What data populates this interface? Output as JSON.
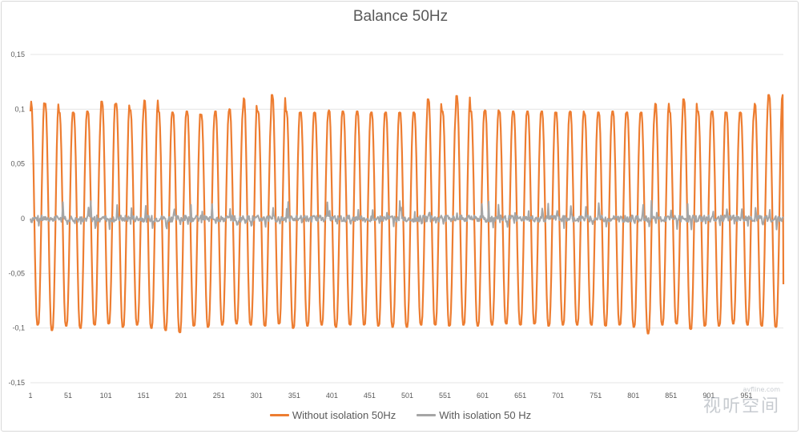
{
  "chart_data": {
    "type": "line",
    "title": "Balance 50Hz",
    "xlabel": "",
    "ylabel": "",
    "ylim": [
      -0.15,
      0.15
    ],
    "y_ticks": [
      "0,15",
      "0,1",
      "0,05",
      "0",
      "-0,05",
      "-0,1",
      "-0,15"
    ],
    "y_tick_values": [
      0.15,
      0.1,
      0.05,
      0,
      -0.05,
      -0.1,
      -0.15
    ],
    "x_range": [
      1,
      1000
    ],
    "x_ticks": [
      "1",
      "51",
      "101",
      "151",
      "201",
      "251",
      "301",
      "351",
      "401",
      "451",
      "501",
      "551",
      "601",
      "651",
      "701",
      "751",
      "801",
      "851",
      "901",
      "951"
    ],
    "x_tick_values": [
      1,
      51,
      101,
      151,
      201,
      251,
      301,
      351,
      401,
      451,
      501,
      551,
      601,
      651,
      701,
      751,
      801,
      851,
      901,
      951
    ],
    "grid": "horizontal",
    "legend_position": "bottom",
    "series": [
      {
        "name": "Without isolation 50Hz",
        "color": "#ed7d31",
        "description": "approximately periodic oscillation, ~53 cycles over the 1000 samples, peaks ≈ 0.093–0.113, troughs ≈ -0.095 to -0.105",
        "cycles": 53,
        "start_value": 0.098,
        "end_value": -0.06,
        "peak_values": [
          0.107,
          0.105,
          0.097,
          0.097,
          0.098,
          0.107,
          0.105,
          0.099,
          0.108,
          0.098,
          0.097,
          0.098,
          0.095,
          0.098,
          0.1,
          0.11,
          0.098,
          0.113,
          0.098,
          0.097,
          0.097,
          0.099,
          0.098,
          0.098,
          0.097,
          0.097,
          0.097,
          0.097,
          0.109,
          0.098,
          0.112,
          0.098,
          0.099,
          0.098,
          0.098,
          0.098,
          0.098,
          0.097,
          0.098,
          0.096,
          0.097,
          0.098,
          0.097,
          0.097,
          0.105,
          0.098,
          0.109,
          0.098,
          0.098,
          0.097,
          0.097,
          0.105,
          0.113
        ],
        "trough_values": [
          -0.097,
          -0.102,
          -0.098,
          -0.1,
          -0.097,
          -0.096,
          -0.099,
          -0.097,
          -0.1,
          -0.102,
          -0.104,
          -0.098,
          -0.099,
          -0.097,
          -0.096,
          -0.097,
          -0.098,
          -0.096,
          -0.1,
          -0.098,
          -0.097,
          -0.099,
          -0.097,
          -0.097,
          -0.098,
          -0.099,
          -0.099,
          -0.097,
          -0.097,
          -0.098,
          -0.097,
          -0.098,
          -0.097,
          -0.096,
          -0.097,
          -0.096,
          -0.098,
          -0.097,
          -0.097,
          -0.097,
          -0.098,
          -0.097,
          -0.099,
          -0.105,
          -0.097,
          -0.096,
          -0.101,
          -0.098,
          -0.098,
          -0.096,
          -0.097,
          -0.098,
          -0.099
        ]
      },
      {
        "name": "With isolation 50 Hz",
        "color": "#a5a5a5",
        "description": "small noisy signal around 0, mostly within ±0.012 with occasional spikes up to ≈ 0.018",
        "amplitude": 0.012,
        "max_spike": 0.018
      }
    ]
  },
  "watermark": {
    "url": "avfline.com",
    "logo": "视听空间"
  }
}
